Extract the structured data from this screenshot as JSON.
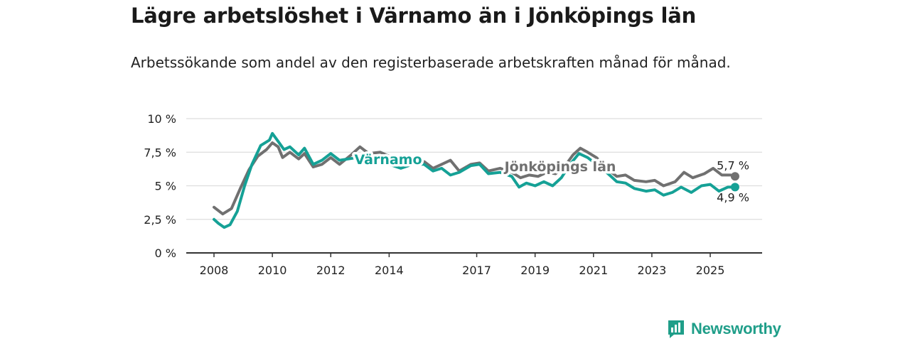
{
  "title": "Lägre arbetslöshet i Värnamo än i Jönköpings län",
  "subtitle": "Arbetssökande som andel av den registerbaserade arbetskraften månad för månad.",
  "logo_text": "Newsworthy",
  "colors": {
    "varnamo": "#15a196",
    "jonkoping": "#707070",
    "grid": "#dddddd",
    "axis": "#333333",
    "brand": "#1f9e89"
  },
  "chart_data": {
    "type": "line",
    "ylim": [
      0,
      10
    ],
    "y_ticks": [
      0,
      2.5,
      5,
      7.5,
      10
    ],
    "y_tick_labels": [
      "0 %",
      "2,5 %",
      "5 %",
      "7,5 %",
      "10 %"
    ],
    "x_ticks": [
      2008,
      2010,
      2012,
      2014,
      2017,
      2019,
      2021,
      2023,
      2025
    ],
    "x_tick_labels": [
      "2008",
      "2010",
      "2012",
      "2014",
      "2017",
      "2019",
      "2021",
      "2023",
      "2025"
    ],
    "x_range": [
      2007.4,
      2026.8
    ],
    "series": [
      {
        "name": "Jönköpings län",
        "label": "Jönköpings län",
        "end_label": "5,7 %",
        "points": [
          [
            2008.0,
            3.4
          ],
          [
            2008.3,
            2.9
          ],
          [
            2008.6,
            3.3
          ],
          [
            2008.9,
            4.8
          ],
          [
            2009.2,
            6.2
          ],
          [
            2009.5,
            7.2
          ],
          [
            2009.8,
            7.7
          ],
          [
            2010.0,
            8.2
          ],
          [
            2010.2,
            7.9
          ],
          [
            2010.35,
            7.1
          ],
          [
            2010.6,
            7.5
          ],
          [
            2010.9,
            7.0
          ],
          [
            2011.1,
            7.4
          ],
          [
            2011.4,
            6.4
          ],
          [
            2011.7,
            6.6
          ],
          [
            2012.0,
            7.1
          ],
          [
            2012.3,
            6.6
          ],
          [
            2012.7,
            7.3
          ],
          [
            2013.0,
            7.9
          ],
          [
            2013.3,
            7.4
          ],
          [
            2013.7,
            7.5
          ],
          [
            2014.0,
            7.2
          ],
          [
            2014.4,
            6.8
          ],
          [
            2014.8,
            6.6
          ],
          [
            2015.2,
            6.8
          ],
          [
            2015.5,
            6.3
          ],
          [
            2015.8,
            6.6
          ],
          [
            2016.1,
            6.9
          ],
          [
            2016.4,
            6.1
          ],
          [
            2016.8,
            6.6
          ],
          [
            2017.1,
            6.7
          ],
          [
            2017.4,
            6.1
          ],
          [
            2017.8,
            6.3
          ],
          [
            2018.2,
            6.0
          ],
          [
            2018.5,
            5.6
          ],
          [
            2018.8,
            5.8
          ],
          [
            2019.1,
            5.7
          ],
          [
            2019.4,
            6.0
          ],
          [
            2019.7,
            5.9
          ],
          [
            2020.0,
            6.4
          ],
          [
            2020.3,
            7.3
          ],
          [
            2020.55,
            7.8
          ],
          [
            2020.8,
            7.5
          ],
          [
            2021.1,
            7.1
          ],
          [
            2021.5,
            6.2
          ],
          [
            2021.8,
            5.7
          ],
          [
            2022.1,
            5.8
          ],
          [
            2022.4,
            5.4
          ],
          [
            2022.8,
            5.3
          ],
          [
            2023.1,
            5.4
          ],
          [
            2023.4,
            5.0
          ],
          [
            2023.8,
            5.3
          ],
          [
            2024.1,
            6.0
          ],
          [
            2024.4,
            5.6
          ],
          [
            2024.8,
            5.9
          ],
          [
            2025.1,
            6.3
          ],
          [
            2025.4,
            5.8
          ],
          [
            2025.7,
            5.8
          ],
          [
            2025.85,
            5.7
          ]
        ]
      },
      {
        "name": "Värnamo",
        "label": "Värnamo",
        "end_label": "4,9 %",
        "points": [
          [
            2008.0,
            2.5
          ],
          [
            2008.15,
            2.2
          ],
          [
            2008.35,
            1.9
          ],
          [
            2008.55,
            2.1
          ],
          [
            2008.8,
            3.1
          ],
          [
            2009.05,
            5.0
          ],
          [
            2009.3,
            6.6
          ],
          [
            2009.6,
            8.0
          ],
          [
            2009.9,
            8.4
          ],
          [
            2010.0,
            8.9
          ],
          [
            2010.2,
            8.3
          ],
          [
            2010.4,
            7.7
          ],
          [
            2010.6,
            7.9
          ],
          [
            2010.9,
            7.3
          ],
          [
            2011.1,
            7.8
          ],
          [
            2011.4,
            6.6
          ],
          [
            2011.7,
            6.9
          ],
          [
            2012.0,
            7.4
          ],
          [
            2012.3,
            6.9
          ],
          [
            2012.6,
            7.0
          ],
          [
            2012.9,
            7.1
          ],
          [
            2013.3,
            6.9
          ],
          [
            2013.7,
            7.1
          ],
          [
            2014.0,
            6.6
          ],
          [
            2014.4,
            6.3
          ],
          [
            2014.8,
            6.6
          ],
          [
            2015.2,
            6.6
          ],
          [
            2015.5,
            6.1
          ],
          [
            2015.8,
            6.3
          ],
          [
            2016.1,
            5.8
          ],
          [
            2016.4,
            6.0
          ],
          [
            2016.8,
            6.5
          ],
          [
            2017.1,
            6.6
          ],
          [
            2017.4,
            5.9
          ],
          [
            2017.8,
            6.0
          ],
          [
            2018.2,
            5.7
          ],
          [
            2018.45,
            4.9
          ],
          [
            2018.7,
            5.2
          ],
          [
            2019.0,
            5.0
          ],
          [
            2019.3,
            5.3
          ],
          [
            2019.6,
            5.0
          ],
          [
            2019.9,
            5.6
          ],
          [
            2020.2,
            6.6
          ],
          [
            2020.5,
            7.4
          ],
          [
            2020.8,
            7.1
          ],
          [
            2021.1,
            6.6
          ],
          [
            2021.5,
            5.9
          ],
          [
            2021.8,
            5.3
          ],
          [
            2022.1,
            5.2
          ],
          [
            2022.4,
            4.8
          ],
          [
            2022.8,
            4.6
          ],
          [
            2023.1,
            4.7
          ],
          [
            2023.4,
            4.3
          ],
          [
            2023.7,
            4.5
          ],
          [
            2024.0,
            4.9
          ],
          [
            2024.35,
            4.5
          ],
          [
            2024.7,
            5.0
          ],
          [
            2025.0,
            5.1
          ],
          [
            2025.3,
            4.6
          ],
          [
            2025.6,
            4.9
          ],
          [
            2025.85,
            4.9
          ]
        ]
      }
    ]
  }
}
